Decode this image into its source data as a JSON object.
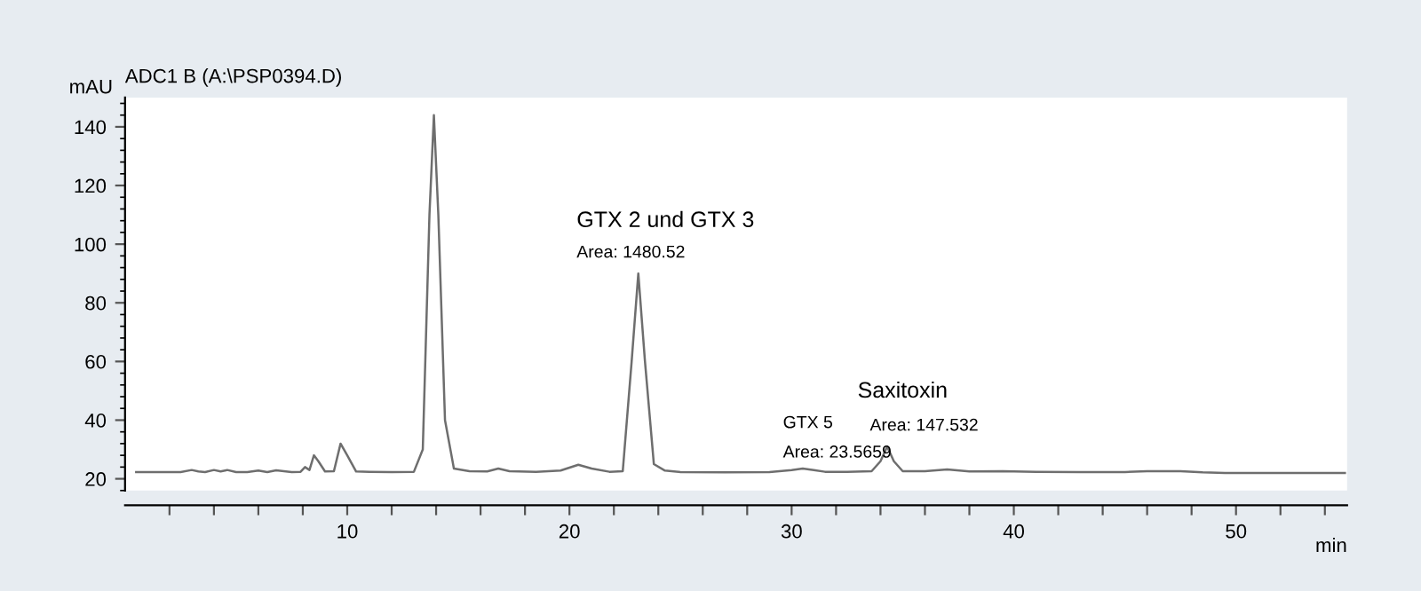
{
  "chart_data": {
    "type": "line",
    "title": "ADC1 B (A:\\PSP0394.D)",
    "ylabel": "mAU",
    "xlabel": "min",
    "x": [
      0.5,
      2.5,
      3.0,
      3.3,
      3.6,
      4.0,
      4.3,
      4.6,
      5.0,
      5.5,
      6.0,
      6.4,
      6.8,
      7.5,
      7.9,
      8.1,
      8.3,
      8.5,
      8.7,
      9.0,
      9.4,
      9.7,
      10.0,
      10.4,
      11,
      12,
      13.0,
      13.4,
      13.7,
      13.9,
      14.1,
      14.4,
      14.8,
      15.5,
      16.3,
      16.8,
      17.3,
      18.5,
      19.6,
      20.4,
      21.0,
      21.8,
      22.4,
      22.8,
      23.1,
      23.4,
      23.8,
      24.3,
      25,
      27,
      29,
      30.0,
      30.5,
      31.0,
      31.5,
      32.5,
      33.6,
      34.0,
      34.3,
      34.6,
      35.0,
      36.0,
      37.0,
      38.0,
      39.5,
      41,
      43,
      45,
      46.0,
      47.5,
      48.5,
      49.5,
      52,
      54.9
    ],
    "series": [
      {
        "color": "#6e6e6e",
        "values": [
          22.3,
          22.3,
          23.0,
          22.5,
          22.3,
          23.0,
          22.5,
          23.0,
          22.3,
          22.3,
          22.8,
          22.3,
          22.9,
          22.3,
          22.4,
          24.0,
          23.0,
          28.0,
          26.0,
          22.5,
          22.6,
          32.0,
          28.0,
          22.5,
          22.4,
          22.3,
          22.4,
          30,
          110,
          144,
          110,
          40,
          23.5,
          22.6,
          22.5,
          23.5,
          22.6,
          22.4,
          22.8,
          24.8,
          23.5,
          22.4,
          22.6,
          60,
          90,
          60,
          25,
          22.8,
          22.3,
          22.2,
          22.3,
          23.0,
          23.5,
          23.0,
          22.4,
          22.4,
          22.6,
          26,
          31,
          26,
          22.6,
          22.6,
          23.2,
          22.5,
          22.6,
          22.4,
          22.3,
          22.3,
          22.6,
          22.6,
          22.2,
          22.0,
          22.0,
          22.0
        ]
      }
    ],
    "xlim": [
      0,
      55
    ],
    "ylim": [
      16,
      150
    ],
    "xticks": [
      {
        "value": 2,
        "label": null
      },
      {
        "value": 4,
        "label": null
      },
      {
        "value": 6,
        "label": null
      },
      {
        "value": 8,
        "label": null
      },
      10,
      {
        "value": 12,
        "label": null
      },
      {
        "value": 14,
        "label": null
      },
      {
        "value": 16,
        "label": null
      },
      {
        "value": 18,
        "label": null
      },
      20,
      {
        "value": 22,
        "label": null
      },
      {
        "value": 24,
        "label": null
      },
      {
        "value": 26,
        "label": null
      },
      {
        "value": 28,
        "label": null
      },
      30,
      {
        "value": 32,
        "label": null
      },
      {
        "value": 34,
        "label": null
      },
      {
        "value": 36,
        "label": null
      },
      {
        "value": 38,
        "label": null
      },
      40,
      {
        "value": 42,
        "label": null
      },
      {
        "value": 44,
        "label": null
      },
      {
        "value": 46,
        "label": null
      },
      {
        "value": 48,
        "label": null
      },
      50,
      {
        "value": 52,
        "label": null
      },
      {
        "value": 54,
        "label": null
      }
    ],
    "yticks": [
      20,
      40,
      60,
      80,
      100,
      120,
      140
    ],
    "annotations": [
      {
        "text": "GTX 2 und GTX 3",
        "x": 23.1,
        "y": 90
      },
      {
        "text": "Area: 1480.52",
        "x": 23.1,
        "y": 90
      },
      {
        "text": "GTX 5",
        "x": 30.5,
        "y": 23.5
      },
      {
        "text": "Area: 23.5659",
        "x": 30.5,
        "y": 23.5
      },
      {
        "text": "Saxitoxin",
        "x": 34.3,
        "y": 31
      },
      {
        "text": "Area: 147.532",
        "x": 34.3,
        "y": 31
      }
    ],
    "grid": false,
    "legend": false,
    "marker": "none",
    "line_style": "solid"
  }
}
